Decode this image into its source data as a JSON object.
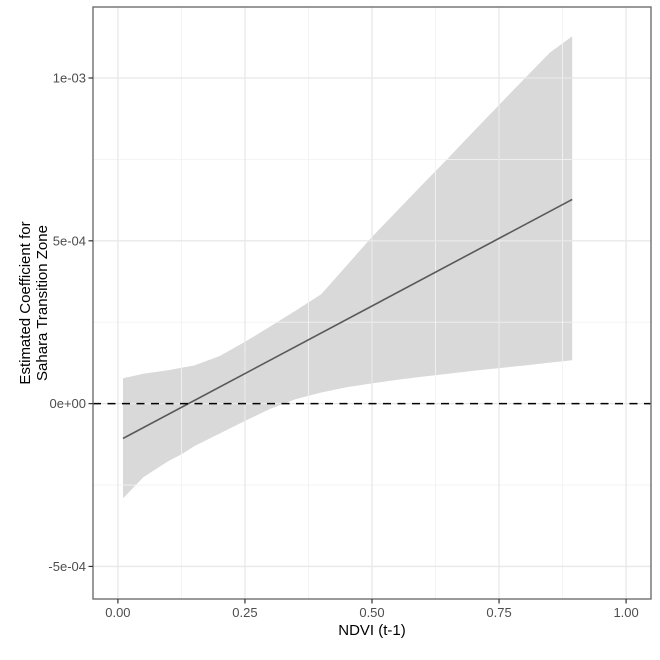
{
  "labels": {
    "ylabel_line1": "Estimated Coefficient for",
    "ylabel_line2": "Sahara Transition Zone"
  },
  "style": {
    "background": "#ffffff",
    "panel_bg": "#ffffff",
    "panel_border": "#6e6e6e",
    "grid_major": "#e8e8e8",
    "grid_minor": "#f2f2f2",
    "ribbon_fill": "#d9d9d9",
    "line_color": "#595959",
    "zero_line_color": "#000000",
    "tick_color": "#333333",
    "tick_label_color": "#4d4d4d",
    "title_color": "#000000"
  },
  "chart_data": {
    "type": "line",
    "title": "",
    "xlabel": "NDVI (t-1)",
    "ylabel": "Estimated Coefficient for Sahara Transition Zone",
    "xlim": [
      -0.049,
      1.049
    ],
    "ylim": [
      -0.0006,
      0.001218
    ],
    "grid": true,
    "legend": "none",
    "x_ticks": {
      "values": [
        0.0,
        0.25,
        0.5,
        0.75,
        1.0
      ],
      "labels": [
        "0.00",
        "0.25",
        "0.50",
        "0.75",
        "1.00"
      ]
    },
    "y_ticks": {
      "values": [
        -0.0005,
        0.0,
        0.0005,
        0.001
      ],
      "labels": [
        "-5e-04",
        "0e+00",
        "5e-04",
        "1e-03"
      ]
    },
    "x_minor": [
      0.125,
      0.375,
      0.625,
      0.875
    ],
    "y_minor": [
      -0.00025,
      0.00025,
      0.00075
    ],
    "series": [
      {
        "name": "estimated-coefficient-line",
        "type": "line",
        "x": [
          0.01,
          0.894
        ],
        "y": [
          -0.000107,
          0.000627
        ]
      },
      {
        "name": "confidence-ribbon",
        "type": "area",
        "x": [
          0.01,
          0.05,
          0.1,
          0.125,
          0.15,
          0.2,
          0.25,
          0.3,
          0.35,
          0.4,
          0.45,
          0.5,
          0.55,
          0.6,
          0.65,
          0.7,
          0.75,
          0.8,
          0.85,
          0.894
        ],
        "upper": [
          7.8e-05,
          9.2e-05,
          0.000103,
          0.00011,
          0.000117,
          0.000146,
          0.00019,
          0.000237,
          0.000286,
          0.000336,
          0.000424,
          0.000512,
          0.000593,
          0.000674,
          0.000754,
          0.000836,
          0.000917,
          0.000998,
          0.001078,
          0.001128
        ],
        "lower": [
          -0.000291,
          -0.000226,
          -0.000176,
          -0.000156,
          -0.000131,
          -9.2e-05,
          -5.3e-05,
          -1.6e-05,
          1.4e-05,
          3.4e-05,
          5e-05,
          6.2e-05,
          7.3e-05,
          8.3e-05,
          9.2e-05,
          0.000101,
          0.000109,
          0.000117,
          0.000126,
          0.000133
        ]
      },
      {
        "name": "zero-reference-line",
        "type": "hline",
        "y": 0,
        "linestyle": "dashed"
      }
    ]
  }
}
